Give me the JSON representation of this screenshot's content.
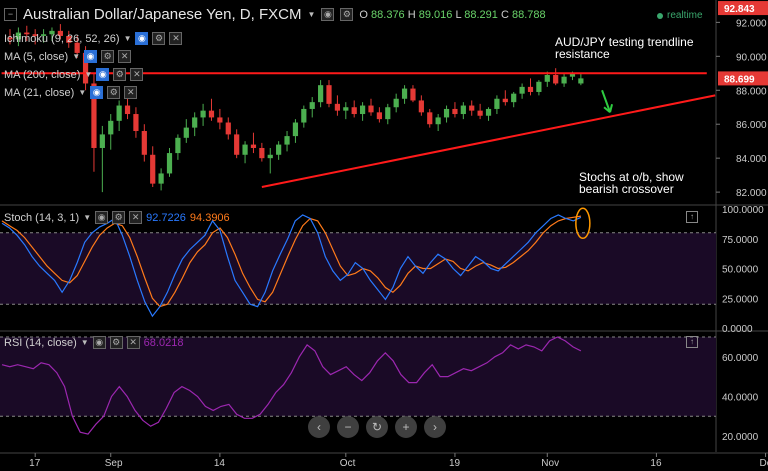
{
  "header": {
    "title": "Australian Dollar/Japanese Yen, D, FXCM",
    "ohlc": {
      "o_label": "O",
      "o": "88.376",
      "h_label": "H",
      "h": "89.016",
      "l_label": "L",
      "l": "88.291",
      "c_label": "C",
      "c": "88.788"
    },
    "realtime": "realtime"
  },
  "indicators": {
    "ichimoku": "Ichimoku (9, 26, 52, 26)",
    "ma5": "MA (5, close)",
    "ma200": "MA (200, close)",
    "ma21": "MA (21, close)"
  },
  "stoch_panel": {
    "label": "Stoch (14, 3, 1)",
    "k_value": "92.7226",
    "d_value": "94.3906"
  },
  "rsi_panel": {
    "label": "RSI (14, close)",
    "value": "68.0218"
  },
  "annotations": {
    "trendline_note": "AUD/JPY testing trendline resistance",
    "trendline_note_l1": "AUD/JPY testing trendline",
    "trendline_note_l2": "resistance",
    "stoch_note_l1": "Stochs at o/b, show",
    "stoch_note_l2": "bearish crossover"
  },
  "price_axis": {
    "ticks": [
      "92.000",
      "90.000",
      "88.000",
      "86.000",
      "84.000",
      "82.000"
    ],
    "top_badge": "92.843",
    "last_badge": "88.699",
    "last_badge_color": "#e53935"
  },
  "stoch_axis": {
    "ticks": [
      "100.0000",
      "75.0000",
      "50.0000",
      "25.0000",
      "0.0000"
    ]
  },
  "rsi_axis": {
    "ticks": [
      "60.0000",
      "40.0000",
      "20.0000"
    ]
  },
  "x_axis": {
    "ticks": [
      "17",
      "Sep",
      "14",
      "Oct",
      "19",
      "Nov",
      "16",
      "Dec"
    ]
  },
  "nav_buttons": [
    "‹",
    "−",
    "↻",
    "+",
    "›"
  ],
  "colors": {
    "up": "#4caf50",
    "down": "#e53935",
    "trend": "#ff1a1a",
    "stoch_k": "#2979ff",
    "stoch_d": "#ff7a1a",
    "rsi": "#9c27b0",
    "osc_bg": "#1a0a26",
    "ellipse": "#ff9800"
  },
  "chart_data": {
    "type": "candlestick",
    "title": "Australian Dollar/Japanese Yen, D, FXCM",
    "ylim": [
      81.3,
      93.2
    ],
    "candles_ohlc": [
      [
        91.1,
        91.6,
        90.7,
        91.0
      ],
      [
        91.0,
        91.7,
        90.6,
        91.4
      ],
      [
        91.4,
        91.8,
        90.9,
        91.3
      ],
      [
        91.3,
        91.6,
        90.7,
        91.2
      ],
      [
        91.2,
        91.6,
        90.8,
        91.3
      ],
      [
        91.3,
        91.7,
        90.9,
        91.5
      ],
      [
        91.5,
        91.9,
        91.0,
        91.2
      ],
      [
        91.2,
        91.5,
        90.5,
        90.8
      ],
      [
        90.8,
        91.2,
        89.9,
        90.2
      ],
      [
        90.2,
        90.6,
        88.0,
        88.4
      ],
      [
        88.4,
        89.0,
        83.2,
        84.6
      ],
      [
        84.6,
        85.9,
        82.0,
        85.4
      ],
      [
        85.4,
        86.6,
        84.5,
        86.2
      ],
      [
        86.2,
        87.4,
        85.6,
        87.1
      ],
      [
        87.1,
        87.8,
        86.3,
        86.6
      ],
      [
        86.6,
        87.0,
        85.2,
        85.6
      ],
      [
        85.6,
        86.0,
        83.8,
        84.2
      ],
      [
        84.2,
        84.7,
        82.3,
        82.5
      ],
      [
        82.5,
        83.4,
        82.1,
        83.1
      ],
      [
        83.1,
        84.6,
        82.9,
        84.3
      ],
      [
        84.3,
        85.4,
        83.9,
        85.2
      ],
      [
        85.2,
        86.3,
        84.9,
        85.8
      ],
      [
        85.8,
        86.7,
        85.3,
        86.4
      ],
      [
        86.4,
        87.2,
        85.9,
        86.8
      ],
      [
        86.8,
        87.5,
        86.2,
        86.4
      ],
      [
        86.4,
        86.9,
        85.7,
        86.1
      ],
      [
        86.1,
        86.4,
        85.1,
        85.4
      ],
      [
        85.4,
        85.7,
        84.0,
        84.2
      ],
      [
        84.2,
        85.0,
        83.7,
        84.8
      ],
      [
        84.8,
        85.5,
        84.3,
        84.6
      ],
      [
        84.6,
        84.9,
        83.8,
        84.0
      ],
      [
        84.0,
        84.6,
        83.1,
        84.2
      ],
      [
        84.2,
        85.0,
        83.9,
        84.8
      ],
      [
        84.8,
        85.6,
        84.4,
        85.3
      ],
      [
        85.3,
        86.3,
        84.9,
        86.1
      ],
      [
        86.1,
        87.1,
        85.8,
        86.9
      ],
      [
        86.9,
        87.6,
        86.4,
        87.3
      ],
      [
        87.3,
        88.6,
        87.0,
        88.3
      ],
      [
        88.3,
        88.6,
        87.0,
        87.2
      ],
      [
        87.2,
        87.7,
        86.5,
        86.8
      ],
      [
        86.8,
        87.3,
        86.3,
        87.0
      ],
      [
        87.0,
        87.4,
        86.4,
        86.6
      ],
      [
        86.6,
        87.3,
        86.2,
        87.1
      ],
      [
        87.1,
        87.5,
        86.5,
        86.7
      ],
      [
        86.7,
        87.0,
        86.1,
        86.3
      ],
      [
        86.3,
        87.2,
        86.0,
        87.0
      ],
      [
        87.0,
        87.8,
        86.7,
        87.5
      ],
      [
        87.5,
        88.3,
        87.2,
        88.1
      ],
      [
        88.1,
        88.3,
        87.3,
        87.4
      ],
      [
        87.4,
        87.7,
        86.5,
        86.7
      ],
      [
        86.7,
        86.9,
        85.8,
        86.0
      ],
      [
        86.0,
        86.6,
        85.6,
        86.4
      ],
      [
        86.4,
        87.1,
        86.1,
        86.9
      ],
      [
        86.9,
        87.3,
        86.4,
        86.6
      ],
      [
        86.6,
        87.3,
        86.3,
        87.1
      ],
      [
        87.1,
        87.4,
        86.5,
        86.8
      ],
      [
        86.8,
        87.2,
        86.3,
        86.5
      ],
      [
        86.5,
        87.0,
        86.2,
        86.9
      ],
      [
        86.9,
        87.7,
        86.6,
        87.5
      ],
      [
        87.5,
        88.0,
        87.1,
        87.3
      ],
      [
        87.3,
        87.9,
        87.0,
        87.8
      ],
      [
        87.8,
        88.4,
        87.5,
        88.2
      ],
      [
        88.2,
        88.7,
        87.7,
        87.9
      ],
      [
        87.9,
        88.6,
        87.7,
        88.5
      ],
      [
        88.5,
        89.1,
        88.2,
        88.9
      ],
      [
        88.9,
        89.3,
        88.3,
        88.4
      ],
      [
        88.4,
        89.0,
        88.2,
        88.8
      ],
      [
        88.8,
        89.1,
        88.6,
        89.0
      ],
      [
        88.4,
        89.0,
        88.3,
        88.7
      ]
    ],
    "x_tick_labels": [
      "17",
      "Sep",
      "14",
      "Oct",
      "19",
      "Nov",
      "16",
      "Dec"
    ],
    "x_tick_index": [
      3,
      12,
      25,
      40,
      53,
      64,
      77,
      90
    ],
    "resistance_line": {
      "from": [
        -1,
        89.0
      ],
      "to": [
        83,
        89.0
      ]
    },
    "trendline": {
      "from": [
        30,
        82.3
      ],
      "to": [
        84,
        87.7
      ]
    },
    "stoch_k": [
      88,
      84,
      78,
      70,
      60,
      52,
      46,
      40,
      30,
      40,
      55,
      72,
      80,
      85,
      88,
      92,
      78,
      60,
      40,
      22,
      10,
      18,
      30,
      45,
      58,
      66,
      72,
      78,
      90,
      82,
      60,
      40,
      30,
      20,
      18,
      30,
      48,
      62,
      75,
      90,
      95,
      92,
      80,
      60,
      48,
      40,
      45,
      55,
      50,
      40,
      32,
      24,
      34,
      50,
      60,
      52,
      46,
      55,
      62,
      58,
      50,
      44,
      52,
      60,
      56,
      50,
      48,
      54,
      60,
      66,
      72,
      80,
      86,
      92,
      95,
      92,
      90,
      93
    ],
    "stoch_d": [
      90,
      86,
      82,
      76,
      68,
      60,
      52,
      46,
      40,
      38,
      44,
      56,
      68,
      78,
      84,
      88,
      86,
      76,
      60,
      42,
      25,
      18,
      20,
      30,
      42,
      55,
      64,
      70,
      80,
      84,
      76,
      62,
      46,
      34,
      24,
      22,
      30,
      45,
      60,
      74,
      86,
      92,
      90,
      80,
      66,
      52,
      44,
      46,
      50,
      48,
      42,
      34,
      30,
      36,
      46,
      52,
      50,
      50,
      54,
      58,
      56,
      50,
      48,
      52,
      55,
      53,
      50,
      51,
      55,
      60,
      65,
      72,
      80,
      86,
      90,
      92,
      93,
      94
    ],
    "rsi": [
      56,
      55,
      56,
      55,
      54,
      57,
      56,
      52,
      45,
      30,
      22,
      21,
      26,
      30,
      40,
      45,
      40,
      33,
      28,
      25,
      27,
      34,
      42,
      45,
      43,
      40,
      35,
      33,
      35,
      36,
      31,
      29,
      29,
      31,
      36,
      42,
      46,
      52,
      60,
      66,
      63,
      55,
      51,
      53,
      55,
      51,
      48,
      52,
      58,
      62,
      58,
      51,
      47,
      47,
      52,
      56,
      50,
      50,
      52,
      54,
      53,
      55,
      57,
      60,
      62,
      66,
      64,
      66,
      65,
      63,
      68,
      70,
      68,
      65,
      63
    ]
  }
}
